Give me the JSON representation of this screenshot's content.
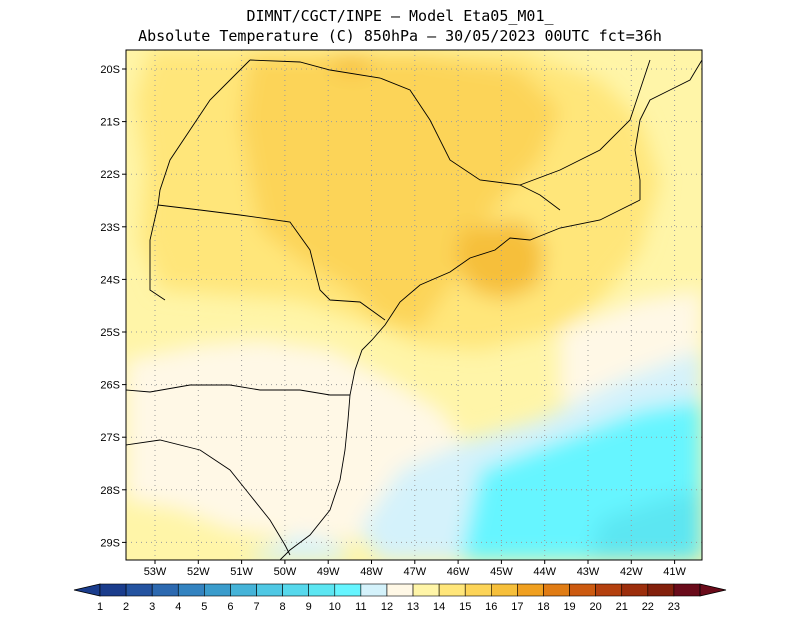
{
  "header": {
    "line1": "DIMNT/CGCT/INPE –   Model Eta05_M01_",
    "line2": "Absolute Temperature (C) 850hPa –   30/05/2023 00UTC fct=36h"
  },
  "map": {
    "lat_labels": [
      "20S",
      "21S",
      "22S",
      "23S",
      "24S",
      "25S",
      "26S",
      "27S",
      "28S",
      "29S"
    ],
    "lon_labels": [
      "53W",
      "52W",
      "51W",
      "50W",
      "49W",
      "48W",
      "47W",
      "46W",
      "45W",
      "44W",
      "43W",
      "42W",
      "41W"
    ]
  },
  "colorbar": {
    "labels": [
      "1",
      "2",
      "3",
      "4",
      "5",
      "6",
      "7",
      "8",
      "9",
      "10",
      "11",
      "12",
      "13",
      "14",
      "15",
      "16",
      "17",
      "18",
      "19",
      "20",
      "21",
      "22",
      "23"
    ],
    "colors": [
      "#1a3c8c",
      "#2453a0",
      "#2c69b0",
      "#3383c0",
      "#3a9ccc",
      "#45b3d8",
      "#4fc8e4",
      "#56d8ec",
      "#5ce6f2",
      "#66f5ff",
      "#d4f2fb",
      "#fff8e6",
      "#fff5a8",
      "#ffe67a",
      "#fcd458",
      "#f6bf3a",
      "#f0a020",
      "#e07c14",
      "#cc5a10",
      "#b4400e",
      "#9c2e0c",
      "#83200c",
      "#6a0b1a"
    ]
  }
}
